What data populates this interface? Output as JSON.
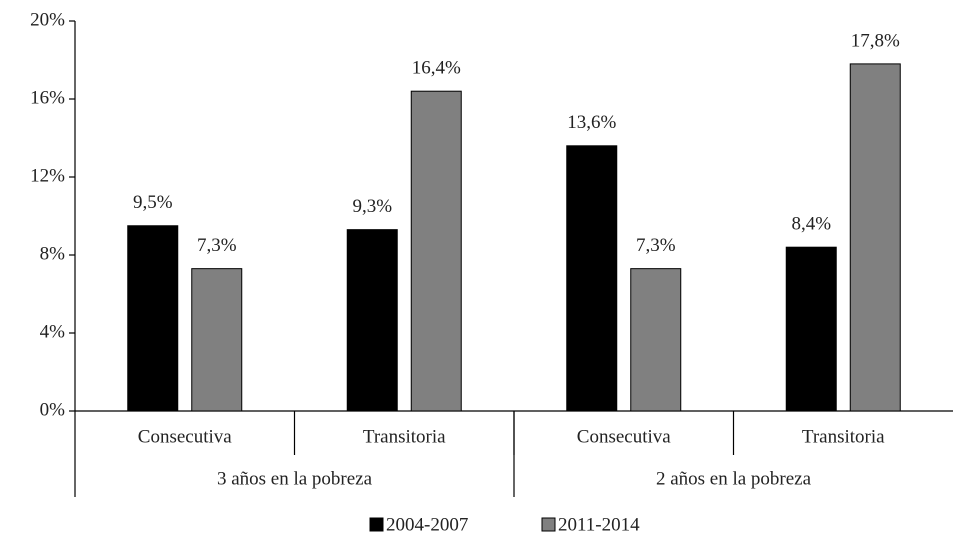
{
  "chart_data": {
    "type": "bar",
    "categories": [
      "Consecutiva",
      "Transitoria",
      "Consecutiva",
      "Transitoria"
    ],
    "category_groups": [
      "3 años en la pobreza",
      "2 años en la pobreza"
    ],
    "series": [
      {
        "name": "2004-2007",
        "color": "#000000",
        "values": [
          9.5,
          9.3,
          13.6,
          8.4
        ],
        "value_labels": [
          "9,5%",
          "9,3%",
          "13,6%",
          "8,4%"
        ]
      },
      {
        "name": "2011-2014",
        "color": "#808080",
        "values": [
          7.3,
          16.4,
          7.3,
          17.8
        ],
        "value_labels": [
          "7,3%",
          "16,4%",
          "7,3%",
          "17,8%"
        ]
      }
    ],
    "ylim": [
      0,
      20
    ],
    "yticks": [
      {
        "value": 0,
        "label": "0%"
      },
      {
        "value": 4,
        "label": "4%"
      },
      {
        "value": 8,
        "label": "8%"
      },
      {
        "value": 12,
        "label": "12%"
      },
      {
        "value": 16,
        "label": "16%"
      },
      {
        "value": 20,
        "label": "20%"
      }
    ],
    "grid": false,
    "legend": "bottom"
  }
}
